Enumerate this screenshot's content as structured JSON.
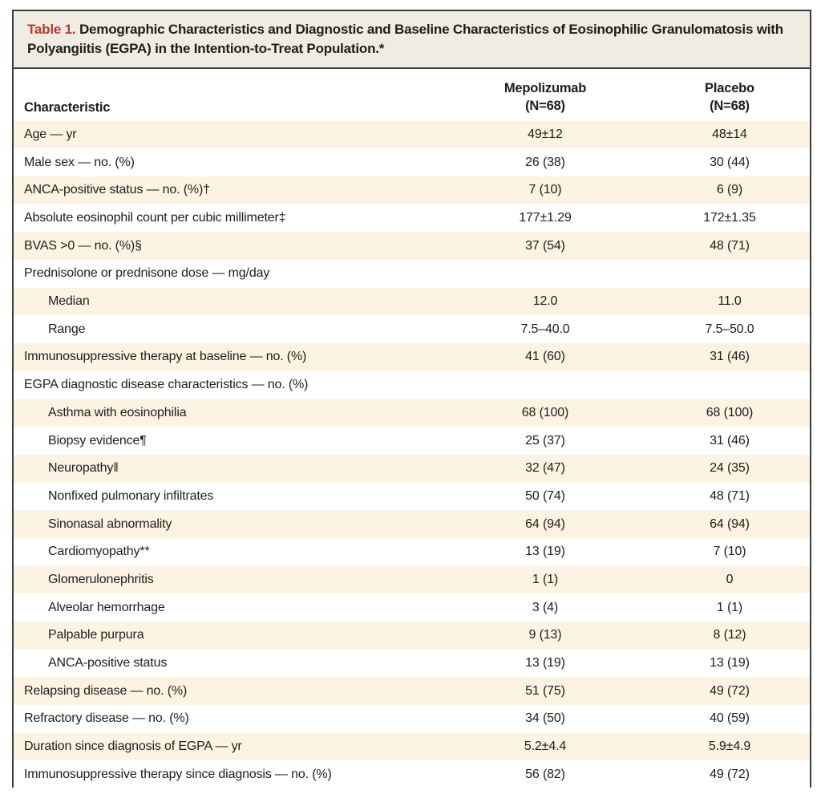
{
  "colors": {
    "accent_red": "#b43b32",
    "title_bg": "#f0ece3",
    "row_cream": "#fcf3e3",
    "border": "#3d3d3d"
  },
  "title": {
    "label": "Table 1.",
    "text": " Demographic Characteristics and Diagnostic and Baseline Characteristics of Eosinophilic Granulomatosis with Polyangiitis (EGPA) in the Intention-to-Treat Population.*"
  },
  "table": {
    "columns": {
      "characteristic": "Characteristic",
      "mepolizumab": "Mepolizumab",
      "mepolizumab_n": "(N=68)",
      "placebo": "Placebo",
      "placebo_n": "(N=68)"
    },
    "rows": [
      {
        "label": "Age — yr",
        "mepolizumab": "49±12",
        "placebo": "48±14",
        "indent": false
      },
      {
        "label": "Male sex — no. (%)",
        "mepolizumab": "26 (38)",
        "placebo": "30 (44)",
        "indent": false
      },
      {
        "label": "ANCA-positive status — no. (%)†",
        "mepolizumab": "7 (10)",
        "placebo": "6 (9)",
        "indent": false
      },
      {
        "label": "Absolute eosinophil count per cubic millimeter‡",
        "mepolizumab": "177±1.29",
        "placebo": "172±1.35",
        "indent": false
      },
      {
        "label": "BVAS >0 — no. (%)§",
        "mepolizumab": "37 (54)",
        "placebo": "48 (71)",
        "indent": false
      },
      {
        "label": "Prednisolone or prednisone dose — mg/day",
        "mepolizumab": "",
        "placebo": "",
        "indent": false
      },
      {
        "label": "Median",
        "mepolizumab": "12.0",
        "placebo": "11.0",
        "indent": true
      },
      {
        "label": "Range",
        "mepolizumab": "7.5–40.0",
        "placebo": "7.5–50.0",
        "indent": true
      },
      {
        "label": "Immunosuppressive therapy at baseline — no. (%)",
        "mepolizumab": "41 (60)",
        "placebo": "31 (46)",
        "indent": false
      },
      {
        "label": "EGPA diagnostic disease characteristics — no. (%)",
        "mepolizumab": "",
        "placebo": "",
        "indent": false
      },
      {
        "label": "Asthma with eosinophilia",
        "mepolizumab": "68 (100)",
        "placebo": "68 (100)",
        "indent": true
      },
      {
        "label": "Biopsy evidence¶",
        "mepolizumab": "25 (37)",
        "placebo": "31 (46)",
        "indent": true
      },
      {
        "label": "Neuropathy‖",
        "mepolizumab": "32 (47)",
        "placebo": "24 (35)",
        "indent": true
      },
      {
        "label": "Nonfixed pulmonary infiltrates",
        "mepolizumab": "50 (74)",
        "placebo": "48 (71)",
        "indent": true
      },
      {
        "label": "Sinonasal abnormality",
        "mepolizumab": "64 (94)",
        "placebo": "64 (94)",
        "indent": true
      },
      {
        "label": "Cardiomyopathy**",
        "mepolizumab": "13 (19)",
        "placebo": "7 (10)",
        "indent": true
      },
      {
        "label": "Glomerulonephritis",
        "mepolizumab": "1 (1)",
        "placebo": "0",
        "indent": true
      },
      {
        "label": "Alveolar hemorrhage",
        "mepolizumab": "3 (4)",
        "placebo": "1 (1)",
        "indent": true
      },
      {
        "label": "Palpable purpura",
        "mepolizumab": "9 (13)",
        "placebo": "8 (12)",
        "indent": true
      },
      {
        "label": "ANCA-positive status",
        "mepolizumab": "13 (19)",
        "placebo": "13 (19)",
        "indent": true
      },
      {
        "label": "Relapsing disease — no. (%)",
        "mepolizumab": "51 (75)",
        "placebo": "49 (72)",
        "indent": false
      },
      {
        "label": "Refractory disease — no. (%)",
        "mepolizumab": "34 (50)",
        "placebo": "40 (59)",
        "indent": false
      },
      {
        "label": "Duration since diagnosis of EGPA — yr",
        "mepolizumab": "5.2±4.4",
        "placebo": "5.9±4.9",
        "indent": false
      },
      {
        "label": "Immunosuppressive therapy since diagnosis — no. (%)",
        "mepolizumab": "56 (82)",
        "placebo": "49 (72)",
        "indent": false
      }
    ]
  }
}
